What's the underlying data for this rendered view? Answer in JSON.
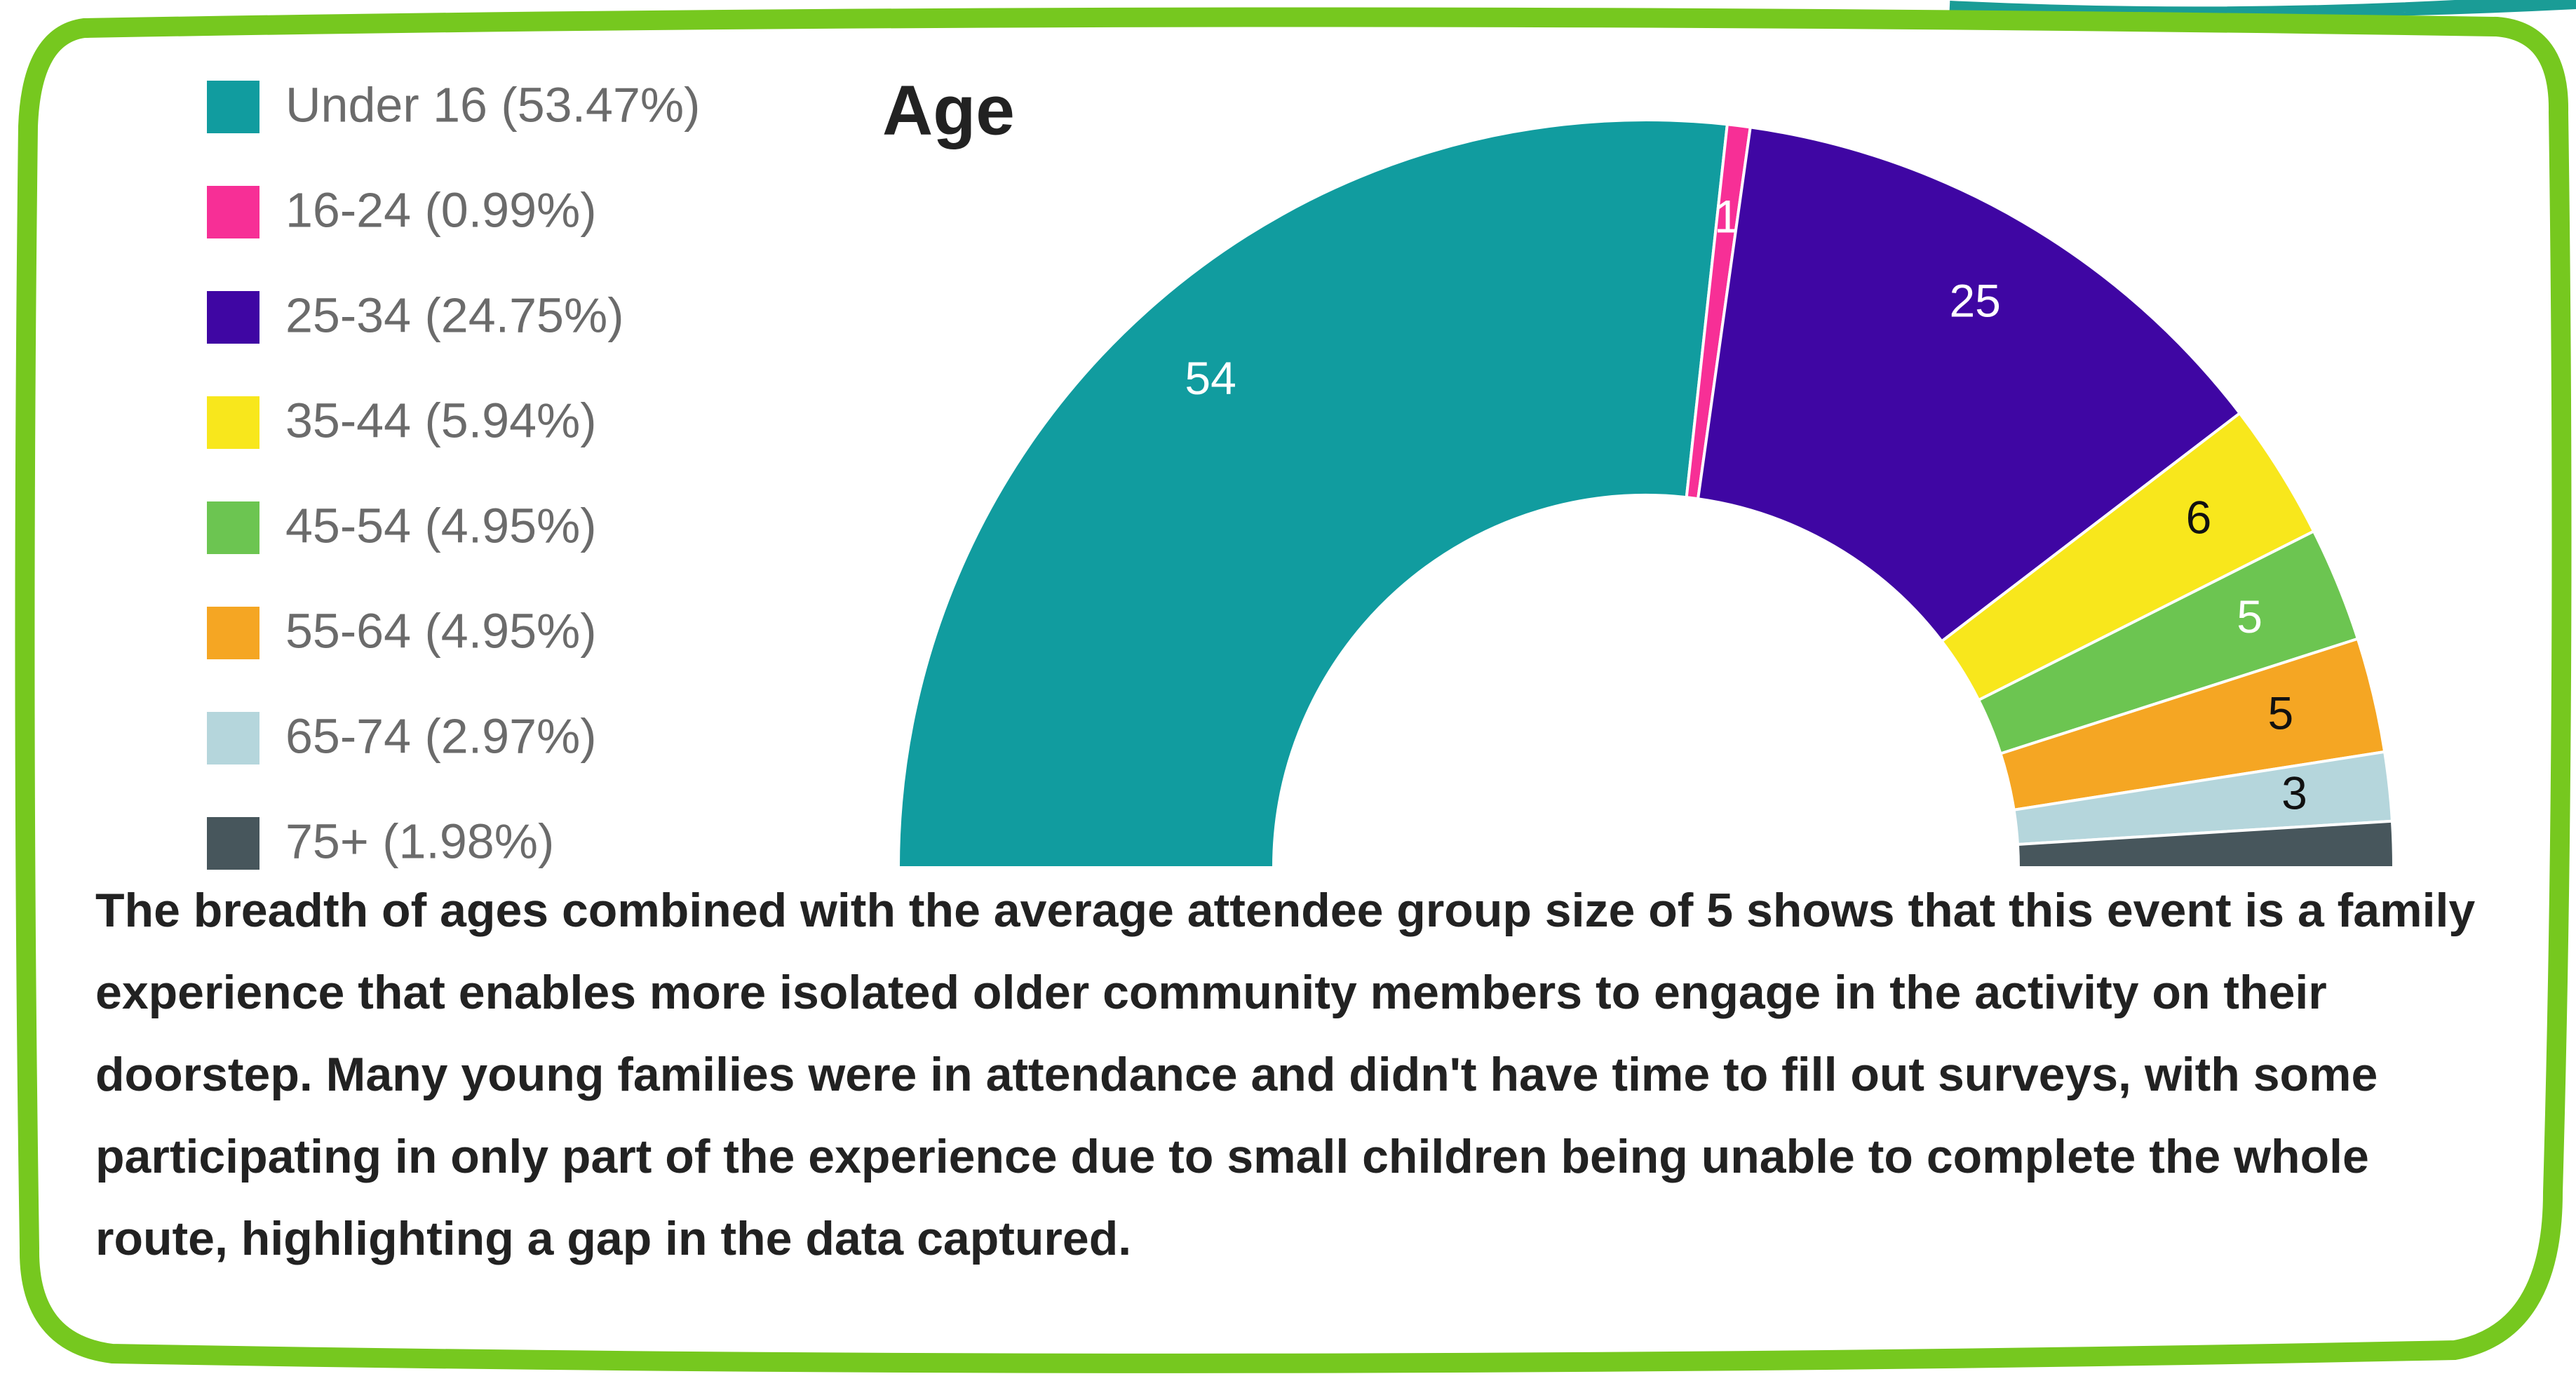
{
  "chart_data": {
    "type": "semi-donut",
    "title": "Age",
    "categories": [
      "Under 16 (53.47%)",
      "16-24 (0.99%)",
      "25-34 (24.75%)",
      "35-44 (5.94%)",
      "45-54 (4.95%)",
      "55-64 (4.95%)",
      "65-74 (2.97%)",
      "75+ (1.98%)"
    ],
    "values": [
      54,
      1,
      25,
      6,
      5,
      5,
      3,
      2
    ],
    "value_labels": [
      "54",
      "1",
      "25",
      "6",
      "5",
      "5",
      "3",
      null
    ],
    "colors": [
      "#119c9f",
      "#f72f96",
      "#3f06a3",
      "#f8e71c",
      "#6cc551",
      "#f5a623",
      "#b5d6dc",
      "#47565c"
    ],
    "label_colors": [
      "#ffffff",
      "#ffffff",
      "#ffffff",
      "#111111",
      "#ffffff",
      "#111111",
      "#111111",
      "#ffffff"
    ],
    "legend": "top-left"
  },
  "note": "The breadth of ages combined with the average attendee group size of 5 shows that this event is a family experience that enables more isolated older community members to engage in the activity on their doorstep. Many young families were in attendance and didn't have time to fill out surveys, with some participating in only part of the experience due to small children being unable to complete the whole route, highlighting a gap in the data captured."
}
